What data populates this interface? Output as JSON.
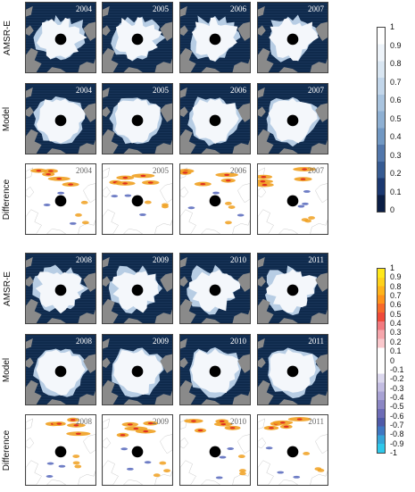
{
  "row_labels": [
    "AMSR-E",
    "Model",
    "Difference",
    "AMSR-E",
    "Model",
    "Difference"
  ],
  "years_top": [
    "2004",
    "2005",
    "2006",
    "2007"
  ],
  "years_bottom": [
    "2008",
    "2009",
    "2010",
    "2011"
  ],
  "colorbar_ice": {
    "labels": [
      "1",
      "0.9",
      "0.8",
      "0.7",
      "0.6",
      "0.5",
      "0.4",
      "0.3",
      "0.2",
      "0.1",
      "0"
    ],
    "colors": [
      "#ffffff",
      "#eef4fa",
      "#d9e6f2",
      "#c2d6ea",
      "#a9c4df",
      "#8eb0d3",
      "#7198c3",
      "#5277ab",
      "#365b92",
      "#1b3870",
      "#0b1e45"
    ]
  },
  "colorbar_diff": {
    "labels": [
      "1",
      "0.9",
      "0.8",
      "0.7",
      "0.6",
      "0.5",
      "0.4",
      "0.3",
      "0.2",
      "0.1",
      "0",
      "-0.1",
      "-0.2",
      "-0.3",
      "-0.4",
      "-0.5",
      "-0.6",
      "-0.7",
      "-0.8",
      "-0.9",
      "-1"
    ],
    "colors": [
      "#ffe81a",
      "#ffd21a",
      "#ffb41a",
      "#ff931a",
      "#f76a2a",
      "#ef4a3a",
      "#f27a80",
      "#f6a6ac",
      "#fac8cc",
      "#ffffff",
      "#ffffff",
      "#ffffff",
      "#dcd8ee",
      "#c3bde2",
      "#a8a2d4",
      "#8b86c4",
      "#6d6cb6",
      "#4f5aa8",
      "#3f77c2",
      "#35a4d8",
      "#2ec8ea"
    ]
  },
  "colors": {
    "ocean": "#0f2a4c",
    "land": "#8a8a8a",
    "ice": "#f4f7fb",
    "pole": "#000000",
    "diff_pos": "#f0a020",
    "diff_neg": "#5566bb"
  }
}
